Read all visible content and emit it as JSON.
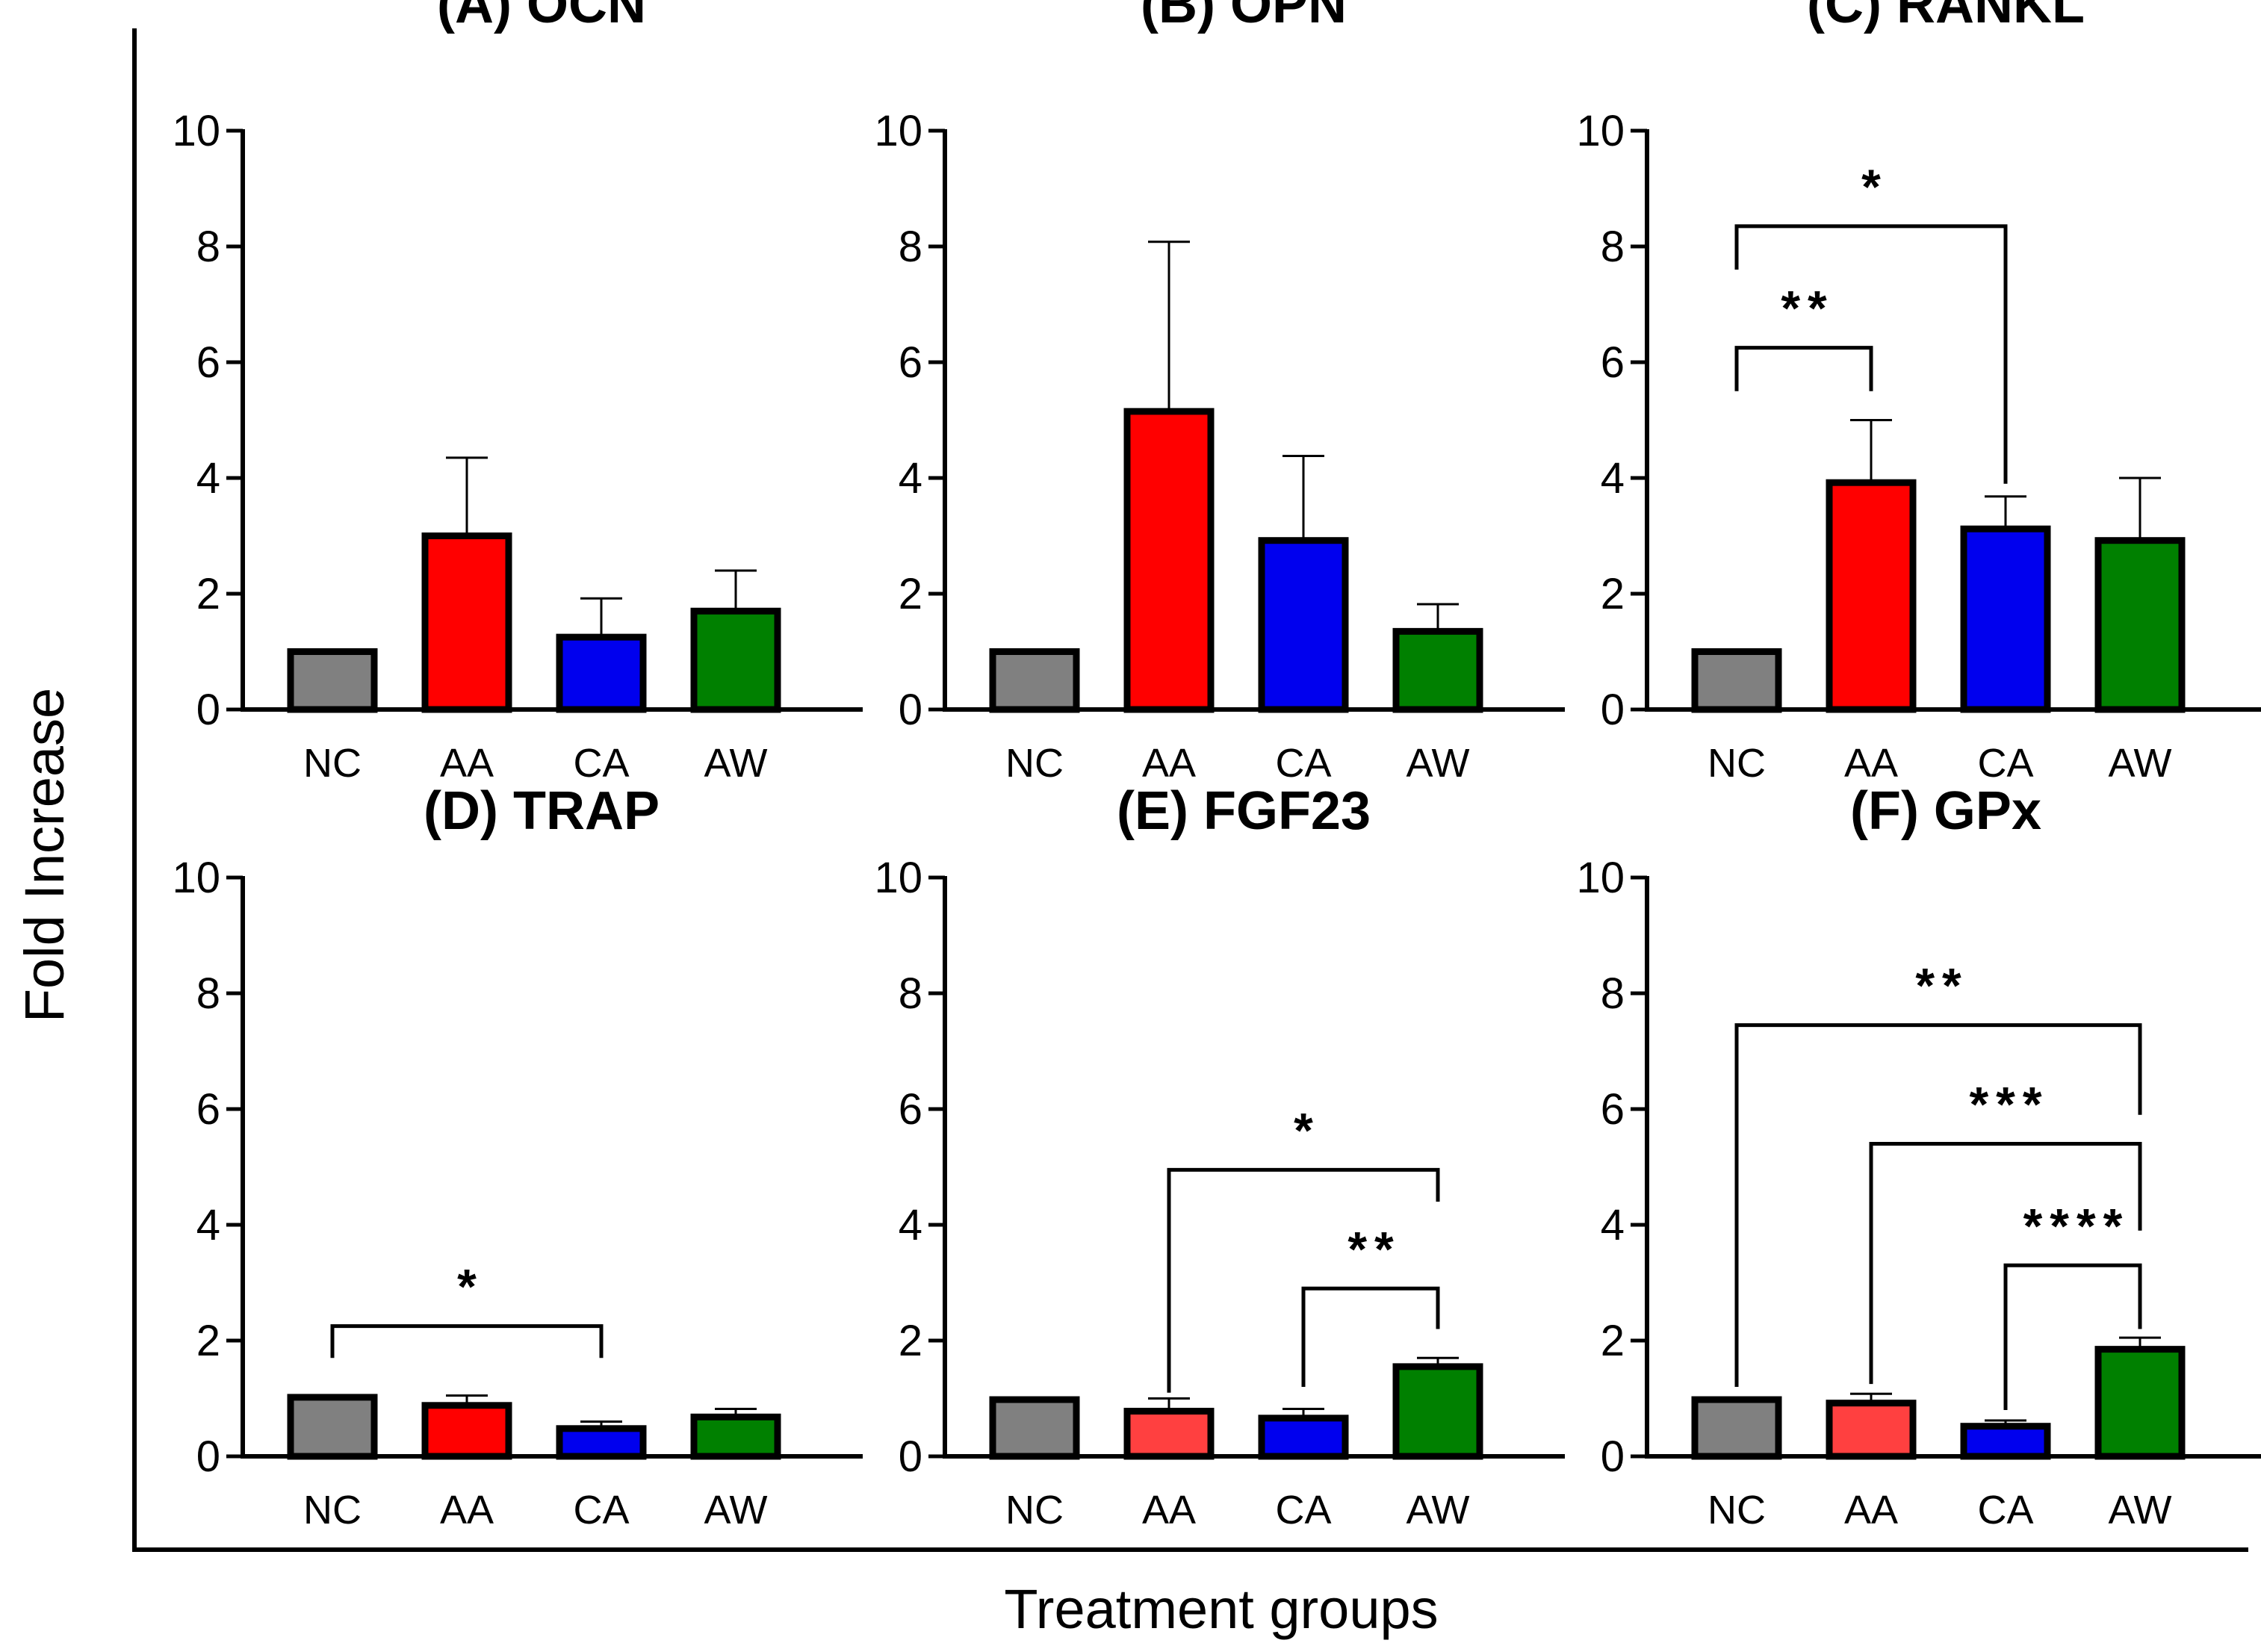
{
  "figure": {
    "ylabel": "Fold Increase",
    "xlabel": "Treatment groups"
  },
  "chart_data": [
    {
      "type": "bar",
      "title": "(A) OCN",
      "categories": [
        "NC",
        "AA",
        "CA",
        "AW"
      ],
      "values": [
        1.0,
        3.0,
        1.25,
        1.7
      ],
      "error_upper": [
        1.0,
        4.35,
        1.92,
        2.4
      ],
      "colors": [
        "#808080",
        "#ff0000",
        "#0000ee",
        "#008000"
      ],
      "yticks": [
        0,
        2,
        4,
        6,
        8,
        10
      ],
      "ylim": [
        0,
        10
      ],
      "significance": []
    },
    {
      "type": "bar",
      "title": "(B) OPN",
      "categories": [
        "NC",
        "AA",
        "CA",
        "AW"
      ],
      "values": [
        1.0,
        5.15,
        2.92,
        1.35
      ],
      "error_upper": [
        1.0,
        8.08,
        4.38,
        1.82
      ],
      "colors": [
        "#808080",
        "#ff0000",
        "#0000ee",
        "#008000"
      ],
      "yticks": [
        0,
        2,
        4,
        6,
        8,
        10
      ],
      "ylim": [
        0,
        10
      ],
      "significance": []
    },
    {
      "type": "bar",
      "title": "(C) RANKL",
      "categories": [
        "NC",
        "AA",
        "CA",
        "AW"
      ],
      "values": [
        1.0,
        3.92,
        3.12,
        2.92
      ],
      "error_upper": [
        1.0,
        5.0,
        3.68,
        4.0
      ],
      "colors": [
        "#808080",
        "#ff0000",
        "#0000ee",
        "#008000"
      ],
      "yticks": [
        0,
        2,
        4,
        6,
        8,
        10
      ],
      "ylim": [
        0,
        10
      ],
      "significance": [
        {
          "from": "NC",
          "to": "CA",
          "label": "*",
          "y": 8.35,
          "drop_from": 7.6,
          "drop_to": 3.9
        },
        {
          "from": "NC",
          "to": "AA",
          "label": "**",
          "y": 6.25,
          "drop_from": 5.5,
          "drop_to": 5.5
        }
      ]
    },
    {
      "type": "bar",
      "title": "(D) TRAP",
      "categories": [
        "NC",
        "AA",
        "CA",
        "AW"
      ],
      "values": [
        1.02,
        0.88,
        0.48,
        0.68
      ],
      "error_upper": [
        1.02,
        1.05,
        0.6,
        0.82
      ],
      "colors": [
        "#808080",
        "#ff0000",
        "#0000ee",
        "#008000"
      ],
      "yticks": [
        0,
        2,
        4,
        6,
        8,
        10
      ],
      "ylim": [
        0,
        10
      ],
      "significance": [
        {
          "from": "NC",
          "to": "CA",
          "label": "*",
          "y": 2.25,
          "drop_from": 1.7,
          "drop_to": 1.7
        }
      ]
    },
    {
      "type": "bar",
      "title": "(E) FGF23",
      "categories": [
        "NC",
        "AA",
        "CA",
        "AW"
      ],
      "values": [
        0.98,
        0.78,
        0.66,
        1.55
      ],
      "error_upper": [
        0.98,
        1.0,
        0.82,
        1.7
      ],
      "colors": [
        "#808080",
        "#ff4040",
        "#0000ee",
        "#008000"
      ],
      "yticks": [
        0,
        2,
        4,
        6,
        8,
        10
      ],
      "ylim": [
        0,
        10
      ],
      "significance": [
        {
          "from": "AA",
          "to": "AW",
          "label": "*",
          "y": 4.95,
          "drop_from": 1.1,
          "drop_to": 4.4
        },
        {
          "from": "CA",
          "to": "AW",
          "label": "**",
          "y": 2.9,
          "drop_from": 1.2,
          "drop_to": 2.2
        }
      ]
    },
    {
      "type": "bar",
      "title": "(F) GPx",
      "categories": [
        "NC",
        "AA",
        "CA",
        "AW"
      ],
      "values": [
        0.98,
        0.92,
        0.52,
        1.85
      ],
      "error_upper": [
        0.98,
        1.08,
        0.62,
        2.05
      ],
      "colors": [
        "#808080",
        "#ff4040",
        "#0000ee",
        "#008000"
      ],
      "yticks": [
        0,
        2,
        4,
        6,
        8,
        10
      ],
      "ylim": [
        0,
        10
      ],
      "significance": [
        {
          "from": "NC",
          "to": "AW",
          "label": "**",
          "y": 7.45,
          "drop_from": 1.2,
          "drop_to": 5.9
        },
        {
          "from": "AA",
          "to": "AW",
          "label": "***",
          "y": 5.4,
          "drop_from": 1.25,
          "drop_to": 3.9
        },
        {
          "from": "CA",
          "to": "AW",
          "label": "****",
          "y": 3.3,
          "drop_from": 0.8,
          "drop_to": 2.2
        }
      ]
    }
  ]
}
